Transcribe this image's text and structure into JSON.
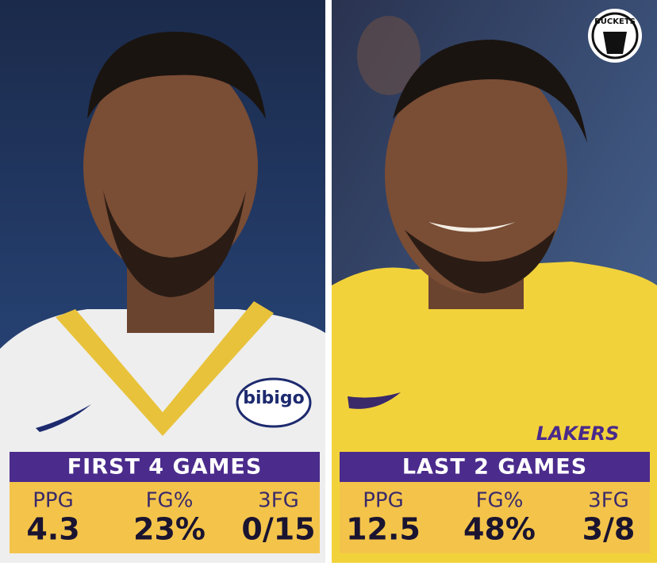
{
  "logo": "BUCKETS",
  "panels": [
    {
      "title": "FIRST 4 GAMES",
      "jersey_text": "bibigo",
      "stats": [
        {
          "label": "PPG",
          "value": "4.3"
        },
        {
          "label": "FG%",
          "value": "23%"
        },
        {
          "label": "3FG",
          "value": "0/15"
        }
      ]
    },
    {
      "title": "LAST 2 GAMES",
      "jersey_text": "LAKERS",
      "stats": [
        {
          "label": "PPG",
          "value": "12.5"
        },
        {
          "label": "FG%",
          "value": "48%"
        },
        {
          "label": "3FG",
          "value": "3/8"
        }
      ]
    }
  ]
}
